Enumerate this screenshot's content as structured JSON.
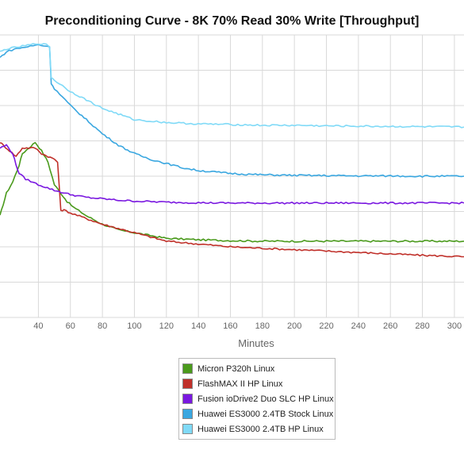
{
  "chart_data": {
    "type": "line",
    "title": "Preconditioning Curve - 8K 70% Read 30% Write [Throughput]",
    "xlabel": "Minutes",
    "ylabel": "",
    "xlim": [
      16,
      306
    ],
    "ylim": [
      0,
      100
    ],
    "x_ticks": [
      40,
      60,
      80,
      100,
      120,
      140,
      160,
      180,
      200,
      220,
      240,
      260,
      280,
      300
    ],
    "grid": true,
    "legend_position": "bottom",
    "series": [
      {
        "name": "Micron P320h Linux",
        "color": "#4a9a1c",
        "x": [
          16,
          18,
          20,
          24,
          28,
          30,
          34,
          38,
          42,
          46,
          50,
          54,
          58,
          62,
          70,
          80,
          90,
          100,
          110,
          120,
          140,
          160,
          180,
          200,
          220,
          240,
          260,
          280,
          306
        ],
        "y": [
          36,
          40,
          44,
          48,
          54,
          58,
          60,
          62,
          59,
          55,
          47,
          44,
          41,
          39,
          36,
          33,
          31,
          30,
          29,
          28,
          27.5,
          27.2,
          27,
          27,
          27,
          27,
          27,
          27,
          27
        ]
      },
      {
        "name": "FlashMAX II HP Linux",
        "color": "#c0302a",
        "x": [
          16,
          18,
          22,
          26,
          30,
          34,
          38,
          42,
          46,
          50,
          52,
          54,
          56,
          60,
          70,
          80,
          90,
          100,
          110,
          120,
          140,
          160,
          180,
          200,
          220,
          240,
          260,
          280,
          306
        ],
        "y": [
          62,
          61,
          59,
          57,
          60,
          60,
          60,
          58,
          57,
          56,
          55,
          38,
          38,
          37,
          35,
          33,
          31.5,
          30,
          28.5,
          27,
          26,
          25,
          24.5,
          24,
          23.5,
          23,
          22.5,
          22,
          21.5
        ]
      },
      {
        "name": "Fusion ioDrive2 Duo SLC HP Linux",
        "color": "#7a18e0",
        "x": [
          16,
          20,
          24,
          26,
          28,
          32,
          40,
          50,
          60,
          70,
          80,
          90,
          100,
          120,
          140,
          160,
          180,
          200,
          220,
          240,
          260,
          280,
          306
        ],
        "y": [
          60,
          61,
          58,
          54,
          51,
          49,
          47,
          45,
          43.5,
          42.5,
          42,
          41.5,
          41.2,
          40.8,
          40.6,
          40.5,
          40.5,
          40.5,
          40.5,
          40.5,
          40.5,
          40.5,
          40.5
        ]
      },
      {
        "name": "Huawei ES3000 2.4TB Stock Linux",
        "color": "#3aa7e0",
        "x": [
          16,
          20,
          25,
          30,
          35,
          40,
          45,
          47,
          48,
          50,
          55,
          60,
          70,
          80,
          90,
          100,
          110,
          120,
          130,
          140,
          150,
          160,
          170,
          180,
          200,
          220,
          240,
          260,
          280,
          306
        ],
        "y": [
          92,
          94,
          95,
          95.5,
          96,
          96.5,
          96,
          96,
          83,
          81,
          78,
          75,
          70,
          65,
          61,
          58,
          56,
          54.5,
          53,
          52,
          51.5,
          51,
          50.7,
          50.5,
          50.3,
          50.2,
          50.1,
          50.1,
          50,
          50
        ]
      },
      {
        "name": "Huawei ES3000 2.4TB HP Linux",
        "color": "#80daf7",
        "x": [
          16,
          20,
          25,
          30,
          35,
          40,
          45,
          47,
          48,
          50,
          55,
          60,
          70,
          80,
          90,
          100,
          120,
          140,
          160,
          180,
          200,
          220,
          240,
          260,
          280,
          306
        ],
        "y": [
          94,
          95,
          95.5,
          96,
          96.5,
          97,
          96.5,
          96,
          85,
          84,
          82,
          80,
          77,
          74,
          72,
          70,
          69,
          68.5,
          68.3,
          68,
          68,
          67.8,
          67.7,
          67.6,
          67.5,
          67.4
        ]
      }
    ]
  }
}
